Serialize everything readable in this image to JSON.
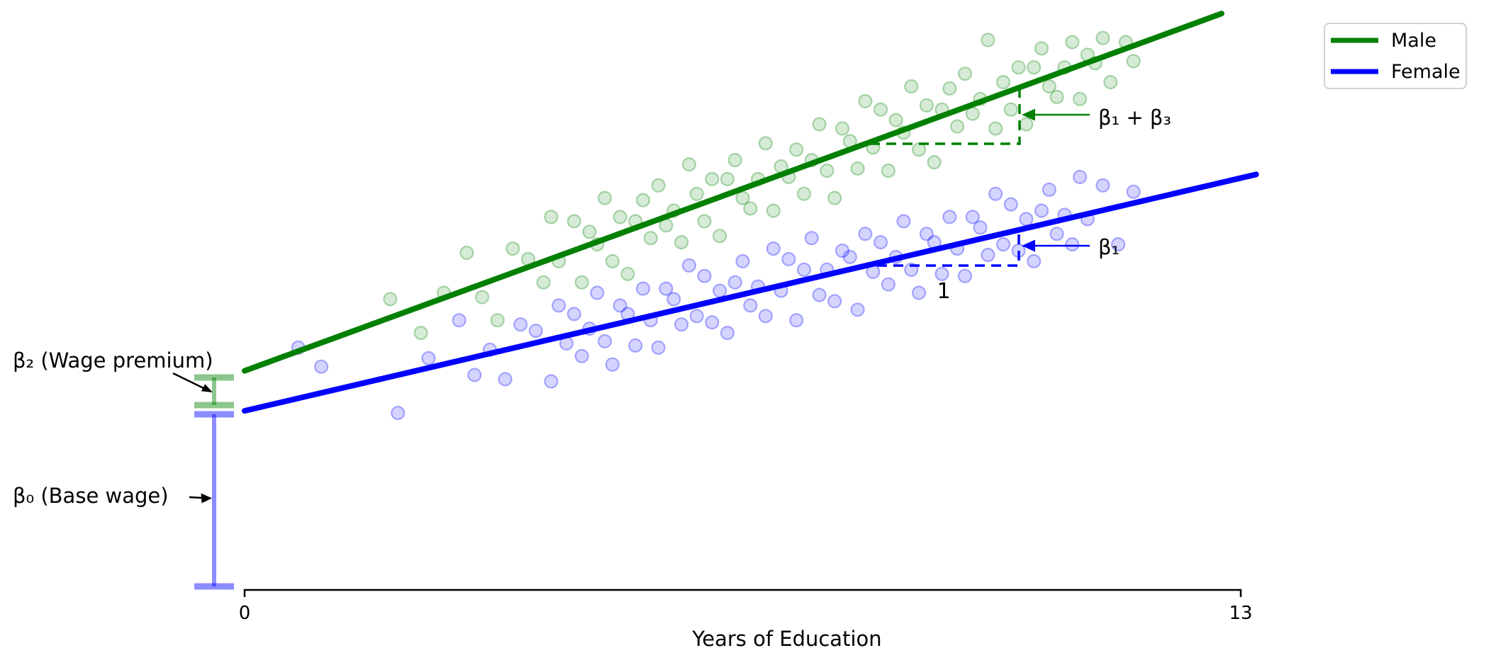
{
  "chart_data": {
    "type": "scatter",
    "title": "",
    "xlabel": "Years of Education",
    "ylabel": "",
    "xlim": [
      0,
      13
    ],
    "ylim": [
      0,
      28
    ],
    "xtick_labels": [
      "0",
      "13"
    ],
    "ytick_labels": [],
    "grid": false,
    "legend": {
      "position": "upper right",
      "border_color": "#cccccc",
      "background": "#ffffff"
    },
    "series": [
      {
        "name": "Female",
        "color": "#0000ff",
        "line": {
          "intercept": 8.5,
          "slope": 0.85,
          "x_start": 0,
          "x_end": 13.2
        },
        "points": [
          [
            0.7,
            11.5
          ],
          [
            1.0,
            10.6
          ],
          [
            2.0,
            8.4
          ],
          [
            2.4,
            11.0
          ],
          [
            2.8,
            12.8
          ],
          [
            3.0,
            10.2
          ],
          [
            3.2,
            11.4
          ],
          [
            3.4,
            10.0
          ],
          [
            3.6,
            12.6
          ],
          [
            3.8,
            12.3
          ],
          [
            4.0,
            9.9
          ],
          [
            4.1,
            13.5
          ],
          [
            4.2,
            11.7
          ],
          [
            4.3,
            13.1
          ],
          [
            4.4,
            11.1
          ],
          [
            4.5,
            12.4
          ],
          [
            4.6,
            14.1
          ],
          [
            4.7,
            11.8
          ],
          [
            4.8,
            10.7
          ],
          [
            4.9,
            13.5
          ],
          [
            5.0,
            13.1
          ],
          [
            5.1,
            11.6
          ],
          [
            5.2,
            14.3
          ],
          [
            5.3,
            12.8
          ],
          [
            5.4,
            11.5
          ],
          [
            5.5,
            14.3
          ],
          [
            5.6,
            13.8
          ],
          [
            5.7,
            12.6
          ],
          [
            5.8,
            15.4
          ],
          [
            5.9,
            13.0
          ],
          [
            6.0,
            14.9
          ],
          [
            6.1,
            12.7
          ],
          [
            6.2,
            14.2
          ],
          [
            6.3,
            12.2
          ],
          [
            6.4,
            14.6
          ],
          [
            6.5,
            15.6
          ],
          [
            6.6,
            13.5
          ],
          [
            6.7,
            14.4
          ],
          [
            6.8,
            13.0
          ],
          [
            6.9,
            16.2
          ],
          [
            7.0,
            14.2
          ],
          [
            7.1,
            15.7
          ],
          [
            7.2,
            12.8
          ],
          [
            7.3,
            15.2
          ],
          [
            7.4,
            16.7
          ],
          [
            7.5,
            14.0
          ],
          [
            7.6,
            15.2
          ],
          [
            7.7,
            13.7
          ],
          [
            7.8,
            16.1
          ],
          [
            7.9,
            15.8
          ],
          [
            8.0,
            13.3
          ],
          [
            8.1,
            16.9
          ],
          [
            8.2,
            15.1
          ],
          [
            8.3,
            16.5
          ],
          [
            8.4,
            14.5
          ],
          [
            8.5,
            15.8
          ],
          [
            8.6,
            17.5
          ],
          [
            8.7,
            15.2
          ],
          [
            8.8,
            14.1
          ],
          [
            8.9,
            16.9
          ],
          [
            9.0,
            16.5
          ],
          [
            9.1,
            15.0
          ],
          [
            9.2,
            17.7
          ],
          [
            9.3,
            16.2
          ],
          [
            9.4,
            14.9
          ],
          [
            9.5,
            17.7
          ],
          [
            9.6,
            17.2
          ],
          [
            9.7,
            15.9
          ],
          [
            9.8,
            18.8
          ],
          [
            9.9,
            16.4
          ],
          [
            10.0,
            18.3
          ],
          [
            10.1,
            16.1
          ],
          [
            10.2,
            17.6
          ],
          [
            10.3,
            15.6
          ],
          [
            10.4,
            18.0
          ],
          [
            10.5,
            19.0
          ],
          [
            10.6,
            16.9
          ],
          [
            10.7,
            17.8
          ],
          [
            10.8,
            16.4
          ],
          [
            10.9,
            19.6
          ],
          [
            11.0,
            17.6
          ],
          [
            11.2,
            19.2
          ],
          [
            11.4,
            16.4
          ],
          [
            11.6,
            18.9
          ]
        ]
      },
      {
        "name": "Male",
        "color": "#008000",
        "line": {
          "intercept": 10.4,
          "slope": 1.33,
          "x_start": 0,
          "x_end": 12.75
        },
        "points": [
          [
            1.9,
            13.8
          ],
          [
            2.3,
            12.2
          ],
          [
            2.6,
            14.1
          ],
          [
            2.9,
            16.0
          ],
          [
            3.1,
            13.9
          ],
          [
            3.3,
            12.8
          ],
          [
            3.5,
            16.2
          ],
          [
            3.7,
            15.7
          ],
          [
            3.9,
            14.6
          ],
          [
            4.0,
            17.7
          ],
          [
            4.1,
            15.6
          ],
          [
            4.3,
            17.5
          ],
          [
            4.4,
            14.6
          ],
          [
            4.5,
            17.0
          ],
          [
            4.6,
            16.4
          ],
          [
            4.7,
            18.6
          ],
          [
            4.8,
            15.6
          ],
          [
            4.9,
            17.7
          ],
          [
            5.0,
            15.0
          ],
          [
            5.1,
            17.5
          ],
          [
            5.2,
            18.5
          ],
          [
            5.3,
            16.7
          ],
          [
            5.4,
            19.2
          ],
          [
            5.5,
            17.3
          ],
          [
            5.6,
            18.0
          ],
          [
            5.7,
            16.5
          ],
          [
            5.8,
            20.2
          ],
          [
            5.9,
            18.8
          ],
          [
            6.0,
            17.5
          ],
          [
            6.1,
            19.5
          ],
          [
            6.2,
            16.8
          ],
          [
            6.3,
            19.5
          ],
          [
            6.4,
            20.4
          ],
          [
            6.5,
            18.6
          ],
          [
            6.6,
            18.1
          ],
          [
            6.7,
            19.5
          ],
          [
            6.8,
            21.2
          ],
          [
            6.9,
            18.0
          ],
          [
            7.0,
            20.1
          ],
          [
            7.1,
            19.6
          ],
          [
            7.2,
            20.9
          ],
          [
            7.3,
            18.8
          ],
          [
            7.4,
            20.4
          ],
          [
            7.5,
            22.1
          ],
          [
            7.6,
            19.9
          ],
          [
            7.7,
            18.6
          ],
          [
            7.8,
            21.9
          ],
          [
            7.9,
            21.3
          ],
          [
            8.0,
            20.0
          ],
          [
            8.1,
            23.2
          ],
          [
            8.2,
            21.0
          ],
          [
            8.3,
            22.8
          ],
          [
            8.4,
            19.9
          ],
          [
            8.5,
            22.3
          ],
          [
            8.6,
            21.7
          ],
          [
            8.7,
            23.9
          ],
          [
            8.8,
            20.9
          ],
          [
            8.9,
            23.0
          ],
          [
            9.0,
            20.3
          ],
          [
            9.1,
            22.8
          ],
          [
            9.2,
            23.8
          ],
          [
            9.3,
            22.0
          ],
          [
            9.4,
            24.5
          ],
          [
            9.5,
            22.6
          ],
          [
            9.6,
            23.3
          ],
          [
            9.7,
            26.1
          ],
          [
            9.8,
            21.9
          ],
          [
            9.9,
            24.1
          ],
          [
            10.0,
            22.8
          ],
          [
            10.1,
            24.8
          ],
          [
            10.2,
            22.1
          ],
          [
            10.3,
            24.8
          ],
          [
            10.4,
            25.7
          ],
          [
            10.5,
            23.9
          ],
          [
            10.6,
            23.4
          ],
          [
            10.7,
            24.8
          ],
          [
            10.8,
            26.0
          ],
          [
            10.9,
            23.3
          ],
          [
            11.0,
            25.4
          ],
          [
            11.1,
            25.0
          ],
          [
            11.2,
            26.2
          ],
          [
            11.3,
            24.1
          ],
          [
            11.5,
            26.0
          ],
          [
            11.6,
            25.1
          ]
        ]
      }
    ],
    "annotations": {
      "slope_male": {
        "label": "β₁ + β₃",
        "meaning": "male slope rise over run of 1"
      },
      "slope_female": {
        "label": "β₁",
        "meaning": "female slope rise over run of 1"
      },
      "run": {
        "label": "1"
      },
      "premium": {
        "label": "β₂ (Wage premium)",
        "color": "#008000"
      },
      "base": {
        "label": "β₀ (Base wage)",
        "color": "#0000ff"
      }
    }
  }
}
